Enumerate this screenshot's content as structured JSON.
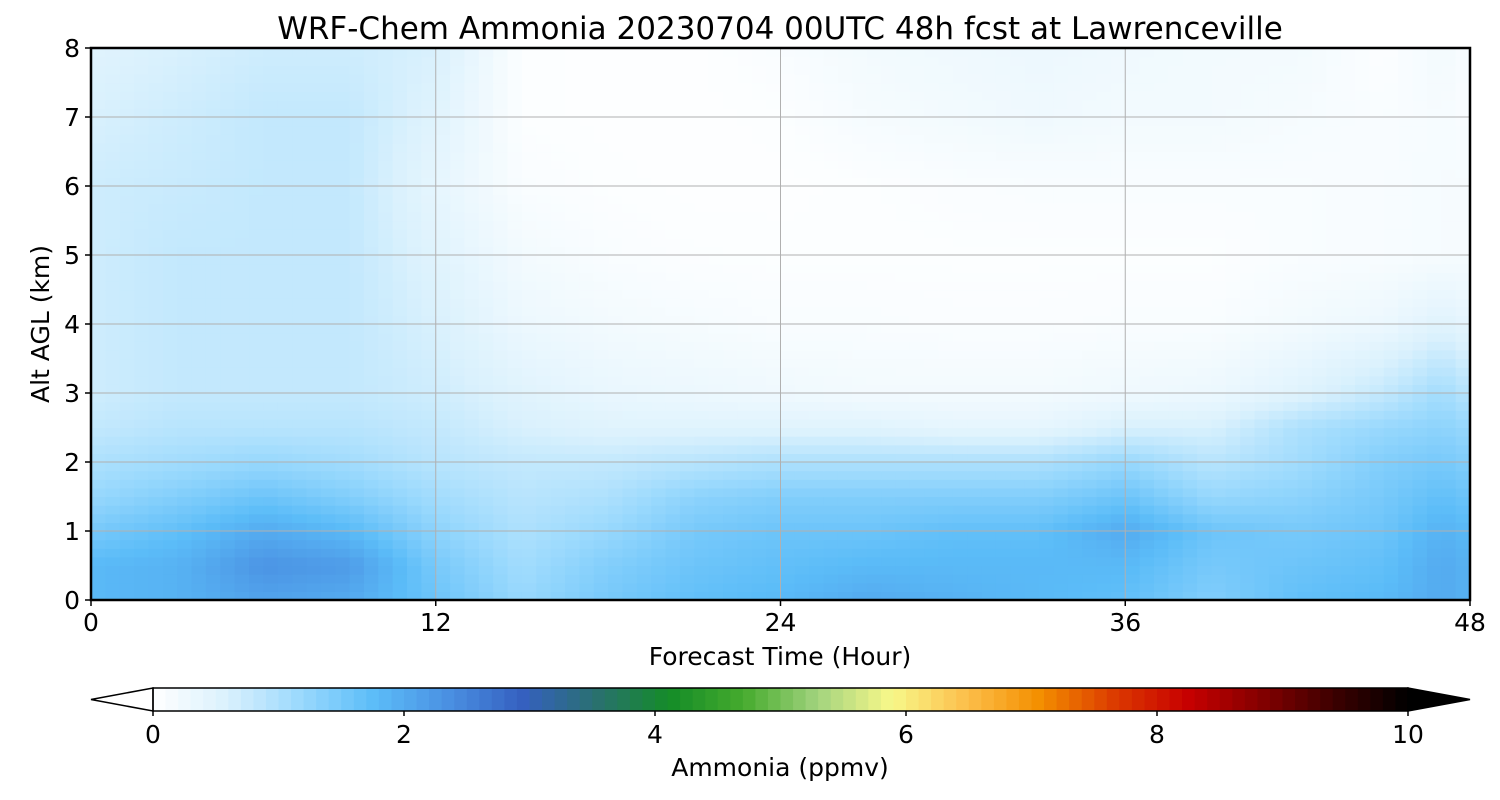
{
  "chart_data": {
    "type": "heatmap",
    "title": "WRF-Chem Ammonia  20230704 00UTC 48h fcst at Lawrenceville",
    "xlabel": "Forecast Time (Hour)",
    "ylabel": "Alt AGL (km)",
    "xlim": [
      0,
      48
    ],
    "ylim": [
      0,
      8
    ],
    "x_ticks": [
      "0",
      "12",
      "24",
      "36",
      "48"
    ],
    "y_ticks": [
      "0",
      "1",
      "2",
      "3",
      "4",
      "5",
      "6",
      "7",
      "8"
    ],
    "grid": true,
    "x": [
      0,
      3,
      6,
      9,
      12,
      15,
      18,
      21,
      24,
      27,
      30,
      33,
      36,
      39,
      42,
      45,
      47,
      48
    ],
    "y": [
      0,
      0.5,
      1,
      1.5,
      2,
      2.5,
      3,
      4,
      5,
      6,
      7,
      8
    ],
    "z": [
      [
        1.8,
        1.9,
        2.1,
        2.0,
        1.6,
        1.2,
        1.5,
        1.7,
        1.8,
        2.0,
        1.9,
        1.8,
        1.7,
        1.4,
        1.7,
        1.8,
        2.0,
        1.9
      ],
      [
        1.8,
        1.9,
        2.3,
        2.2,
        1.5,
        1.1,
        1.4,
        1.6,
        1.7,
        1.8,
        1.8,
        1.8,
        1.8,
        1.5,
        1.6,
        1.7,
        2.0,
        1.9
      ],
      [
        1.5,
        1.7,
        2.0,
        1.8,
        1.3,
        1.0,
        1.2,
        1.5,
        1.6,
        1.6,
        1.7,
        1.7,
        2.0,
        1.6,
        1.5,
        1.6,
        1.9,
        1.8
      ],
      [
        1.2,
        1.4,
        1.6,
        1.4,
        1.1,
        0.9,
        1.0,
        1.3,
        1.4,
        1.4,
        1.4,
        1.4,
        1.6,
        1.2,
        1.3,
        1.5,
        1.7,
        1.6
      ],
      [
        1.0,
        1.1,
        1.2,
        1.1,
        0.9,
        0.8,
        0.8,
        0.9,
        1.0,
        1.0,
        1.0,
        1.0,
        1.2,
        0.9,
        1.1,
        1.4,
        1.5,
        1.4
      ],
      [
        0.8,
        0.9,
        0.9,
        0.9,
        0.8,
        0.6,
        0.5,
        0.5,
        0.5,
        0.5,
        0.4,
        0.4,
        0.6,
        0.6,
        1.0,
        1.2,
        1.3,
        1.2
      ],
      [
        0.7,
        0.8,
        0.8,
        0.8,
        0.7,
        0.5,
        0.35,
        0.3,
        0.25,
        0.2,
        0.2,
        0.2,
        0.25,
        0.3,
        0.5,
        0.8,
        1.1,
        0.9
      ],
      [
        0.7,
        0.8,
        0.8,
        0.8,
        0.6,
        0.3,
        0.2,
        0.15,
        0.1,
        0.1,
        0.08,
        0.08,
        0.1,
        0.1,
        0.2,
        0.3,
        0.5,
        0.4
      ],
      [
        0.7,
        0.8,
        0.8,
        0.8,
        0.5,
        0.2,
        0.1,
        0.06,
        0.05,
        0.05,
        0.05,
        0.05,
        0.05,
        0.05,
        0.1,
        0.12,
        0.15,
        0.15
      ],
      [
        0.7,
        0.75,
        0.8,
        0.8,
        0.4,
        0.1,
        0.05,
        0.03,
        0.03,
        0.05,
        0.08,
        0.1,
        0.1,
        0.1,
        0.1,
        0.12,
        0.15,
        0.15
      ],
      [
        0.6,
        0.7,
        0.8,
        0.8,
        0.5,
        0.05,
        0.03,
        0.03,
        0.05,
        0.15,
        0.2,
        0.25,
        0.2,
        0.2,
        0.15,
        0.1,
        0.15,
        0.1
      ],
      [
        0.5,
        0.6,
        0.7,
        0.7,
        0.6,
        0.05,
        0.03,
        0.03,
        0.1,
        0.2,
        0.25,
        0.3,
        0.25,
        0.2,
        0.2,
        0.05,
        0.2,
        0.1
      ]
    ],
    "colorbar": {
      "label": "Ammonia  (ppmv)",
      "range": [
        0,
        10
      ],
      "ticks": [
        "0",
        "2",
        "4",
        "6",
        "8",
        "10"
      ],
      "extend": "both",
      "colors": [
        "#ffffff",
        "#daf1fd",
        "#9ad9fd",
        "#5bbcf8",
        "#4a90e2",
        "#3560c0",
        "#2a7070",
        "#148c28",
        "#46ab2e",
        "#a2d37e",
        "#f8f88a",
        "#fcc04c",
        "#f48f00",
        "#dc3c00",
        "#c80000",
        "#840000",
        "#3c0000",
        "#000000"
      ]
    }
  }
}
